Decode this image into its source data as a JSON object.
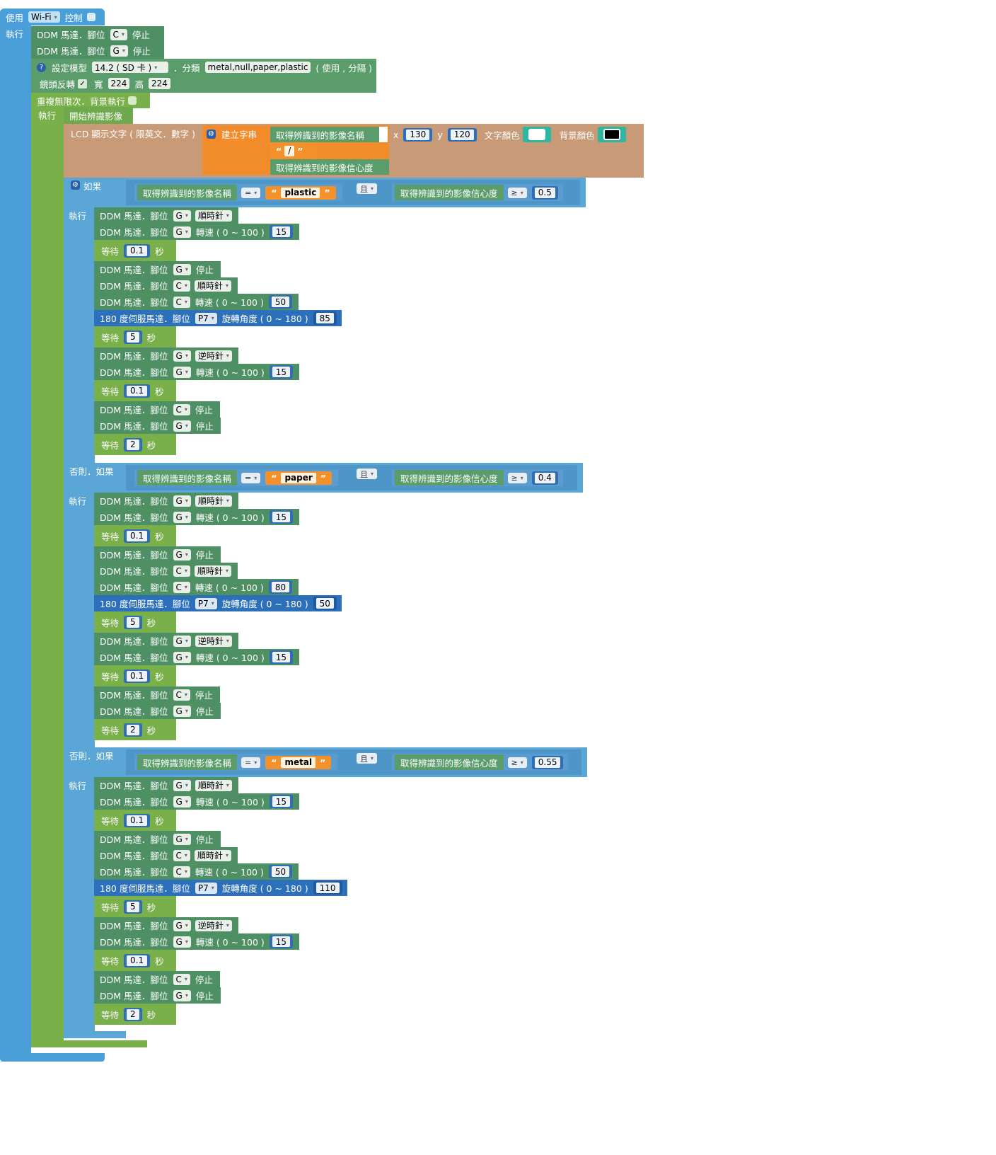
{
  "header": {
    "use_label": "使用",
    "wifi_value": "Wi-Fi",
    "control_label": "控制",
    "do_label": "執行"
  },
  "init": [
    {
      "prefix": "DDM 馬達．腳位",
      "pin": "C",
      "suffix": "停止"
    },
    {
      "prefix": "DDM 馬達．腳位",
      "pin": "G",
      "suffix": "停止"
    }
  ],
  "model": {
    "set_label": "設定模型",
    "model_value": "14.2 ( SD 卡 )",
    "class_label": "．分類",
    "classes": "metal,null,paper,plastic",
    "sep_label": "( 使用 , 分隔 )",
    "mirror_label": "鏡頭反轉",
    "mirror_check": "✓",
    "width_label": "寬",
    "width_value": "224",
    "height_label": "高",
    "height_value": "224"
  },
  "loop": {
    "label": "重複無限次．背景執行",
    "do_label": "執行",
    "start_label": "開始辨識影像"
  },
  "lcd": {
    "label": "LCD 顯示文字 ( 限英文．數字 )",
    "build_label": "建立字串",
    "name_label": "取得辨識到的影像名稱",
    "sep_value": "/",
    "conf_label": "取得辨識到的影像信心度",
    "x_label": "x",
    "x_value": "130",
    "y_label": "y",
    "y_value": "120",
    "text_color_label": "文字顏色",
    "bg_color_label": "背景顏色",
    "text_color": "#ffffff",
    "bg_color": "#000000"
  },
  "conditions": [
    {
      "if_label": "如果",
      "name_label": "取得辨識到的影像名稱",
      "eq": "=",
      "str": "plastic",
      "and": "且",
      "conf_label": "取得辨識到的影像信心度",
      "ge": "≥",
      "threshold": "0.5"
    },
    {
      "if_label": "否則．如果",
      "name_label": "取得辨識到的影像名稱",
      "eq": "=",
      "str": "paper",
      "and": "且",
      "conf_label": "取得辨識到的影像信心度",
      "ge": "≥",
      "threshold": "0.4"
    },
    {
      "if_label": "否則．如果",
      "name_label": "取得辨識到的影像名稱",
      "eq": "=",
      "str": "metal",
      "and": "且",
      "conf_label": "取得辨識到的影像信心度",
      "ge": "≥",
      "threshold": "0.55"
    }
  ],
  "branches": [
    {
      "do_label": "執行",
      "rows": [
        {
          "t": "dir",
          "prefix": "DDM 馬達．腳位",
          "pin": "G",
          "dir": "順時針"
        },
        {
          "t": "speed",
          "prefix": "DDM 馬達．腳位",
          "pin": "G",
          "mid": "轉速 ( 0 ~ 100 )",
          "val": "15"
        },
        {
          "t": "wait",
          "pre": "等待",
          "val": "0.1",
          "post": "秒"
        },
        {
          "t": "stop",
          "prefix": "DDM 馬達．腳位",
          "pin": "G",
          "suffix": "停止"
        },
        {
          "t": "dir",
          "prefix": "DDM 馬達．腳位",
          "pin": "C",
          "dir": "順時針"
        },
        {
          "t": "speed",
          "prefix": "DDM 馬達．腳位",
          "pin": "C",
          "mid": "轉速 ( 0 ~ 100 )",
          "val": "50"
        },
        {
          "t": "servo",
          "prefix": "180 度伺服馬達．腳位",
          "pin": "P7",
          "mid": "旋轉角度 ( 0 ~ 180 )",
          "val": "85"
        },
        {
          "t": "wait",
          "pre": "等待",
          "val": "5",
          "post": "秒"
        },
        {
          "t": "dir",
          "prefix": "DDM 馬達．腳位",
          "pin": "G",
          "dir": "逆時針"
        },
        {
          "t": "speed",
          "prefix": "DDM 馬達．腳位",
          "pin": "G",
          "mid": "轉速 ( 0 ~ 100 )",
          "val": "15"
        },
        {
          "t": "wait",
          "pre": "等待",
          "val": "0.1",
          "post": "秒"
        },
        {
          "t": "stop",
          "prefix": "DDM 馬達．腳位",
          "pin": "C",
          "suffix": "停止"
        },
        {
          "t": "stop",
          "prefix": "DDM 馬達．腳位",
          "pin": "G",
          "suffix": "停止"
        },
        {
          "t": "wait",
          "pre": "等待",
          "val": "2",
          "post": "秒"
        }
      ]
    },
    {
      "do_label": "執行",
      "rows": [
        {
          "t": "dir",
          "prefix": "DDM 馬達．腳位",
          "pin": "G",
          "dir": "順時針"
        },
        {
          "t": "speed",
          "prefix": "DDM 馬達．腳位",
          "pin": "G",
          "mid": "轉速 ( 0 ~ 100 )",
          "val": "15"
        },
        {
          "t": "wait",
          "pre": "等待",
          "val": "0.1",
          "post": "秒"
        },
        {
          "t": "stop",
          "prefix": "DDM 馬達．腳位",
          "pin": "G",
          "suffix": "停止"
        },
        {
          "t": "dir",
          "prefix": "DDM 馬達．腳位",
          "pin": "C",
          "dir": "順時針"
        },
        {
          "t": "speed",
          "prefix": "DDM 馬達．腳位",
          "pin": "C",
          "mid": "轉速 ( 0 ~ 100 )",
          "val": "80"
        },
        {
          "t": "servo",
          "prefix": "180 度伺服馬達．腳位",
          "pin": "P7",
          "mid": "旋轉角度 ( 0 ~ 180 )",
          "val": "50"
        },
        {
          "t": "wait",
          "pre": "等待",
          "val": "5",
          "post": "秒"
        },
        {
          "t": "dir",
          "prefix": "DDM 馬達．腳位",
          "pin": "G",
          "dir": "逆時針"
        },
        {
          "t": "speed",
          "prefix": "DDM 馬達．腳位",
          "pin": "G",
          "mid": "轉速 ( 0 ~ 100 )",
          "val": "15"
        },
        {
          "t": "wait",
          "pre": "等待",
          "val": "0.1",
          "post": "秒"
        },
        {
          "t": "stop",
          "prefix": "DDM 馬達．腳位",
          "pin": "C",
          "suffix": "停止"
        },
        {
          "t": "stop",
          "prefix": "DDM 馬達．腳位",
          "pin": "G",
          "suffix": "停止"
        },
        {
          "t": "wait",
          "pre": "等待",
          "val": "2",
          "post": "秒"
        }
      ]
    },
    {
      "do_label": "執行",
      "rows": [
        {
          "t": "dir",
          "prefix": "DDM 馬達．腳位",
          "pin": "G",
          "dir": "順時針"
        },
        {
          "t": "speed",
          "prefix": "DDM 馬達．腳位",
          "pin": "G",
          "mid": "轉速 ( 0 ~ 100 )",
          "val": "15"
        },
        {
          "t": "wait",
          "pre": "等待",
          "val": "0.1",
          "post": "秒"
        },
        {
          "t": "stop",
          "prefix": "DDM 馬達．腳位",
          "pin": "G",
          "suffix": "停止"
        },
        {
          "t": "dir",
          "prefix": "DDM 馬達．腳位",
          "pin": "C",
          "dir": "順時針"
        },
        {
          "t": "speed",
          "prefix": "DDM 馬達．腳位",
          "pin": "C",
          "mid": "轉速 ( 0 ~ 100 )",
          "val": "50"
        },
        {
          "t": "servo",
          "prefix": "180 度伺服馬達．腳位",
          "pin": "P7",
          "mid": "旋轉角度 ( 0 ~ 180 )",
          "val": "110"
        },
        {
          "t": "wait",
          "pre": "等待",
          "val": "5",
          "post": "秒"
        },
        {
          "t": "dir",
          "prefix": "DDM 馬達．腳位",
          "pin": "G",
          "dir": "逆時針"
        },
        {
          "t": "speed",
          "prefix": "DDM 馬達．腳位",
          "pin": "G",
          "mid": "轉速 ( 0 ~ 100 )",
          "val": "15"
        },
        {
          "t": "wait",
          "pre": "等待",
          "val": "0.1",
          "post": "秒"
        },
        {
          "t": "stop",
          "prefix": "DDM 馬達．腳位",
          "pin": "C",
          "suffix": "停止"
        },
        {
          "t": "stop",
          "prefix": "DDM 馬達．腳位",
          "pin": "G",
          "suffix": "停止"
        },
        {
          "t": "wait",
          "pre": "等待",
          "val": "2",
          "post": "秒"
        }
      ]
    }
  ]
}
